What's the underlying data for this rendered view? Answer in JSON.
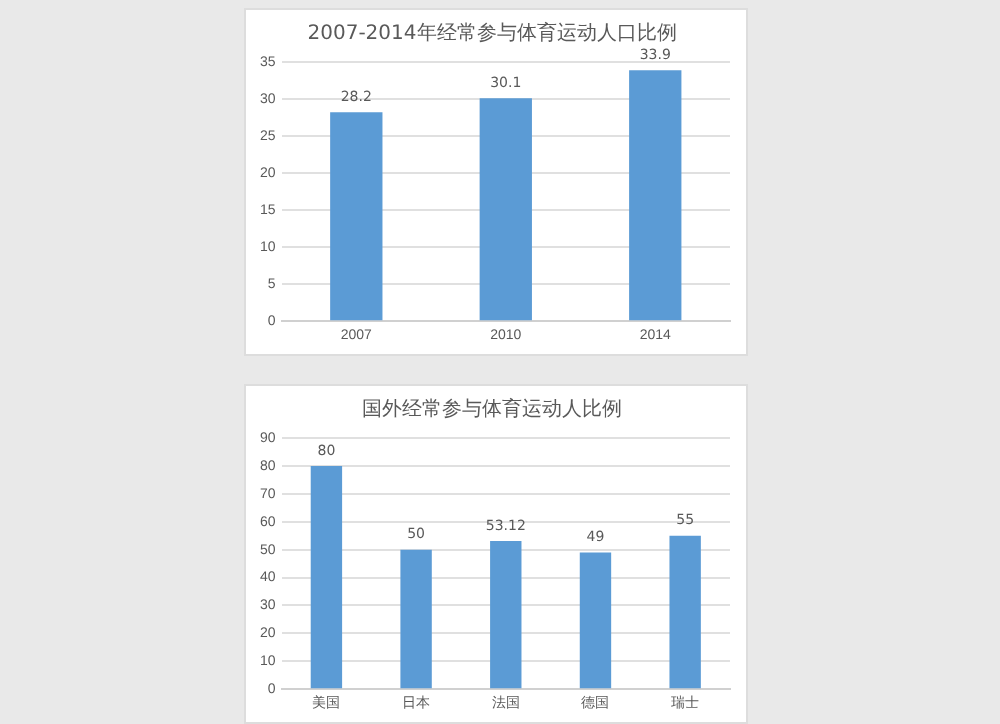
{
  "chart_data": [
    {
      "type": "bar",
      "title": "2007-2014年经常参与体育运动人口比例",
      "categories": [
        "2007",
        "2010",
        "2014"
      ],
      "values": [
        28.2,
        30.1,
        33.9
      ],
      "color": "#5b9bd5",
      "ylim": [
        0,
        35
      ],
      "yticks": [
        0,
        5,
        10,
        15,
        20,
        25,
        30,
        35
      ],
      "grid": "y",
      "data_labels": true
    },
    {
      "type": "bar",
      "title": "国外经常参与体育运动人比例",
      "categories": [
        "美国",
        "日本",
        "法国",
        "德国",
        "瑞士"
      ],
      "values": [
        80,
        50,
        53.12,
        49,
        55
      ],
      "color": "#5b9bd5",
      "ylim": [
        0,
        90
      ],
      "yticks": [
        0,
        10,
        20,
        30,
        40,
        50,
        60,
        70,
        80,
        90
      ],
      "grid": "y",
      "data_labels": true
    }
  ]
}
